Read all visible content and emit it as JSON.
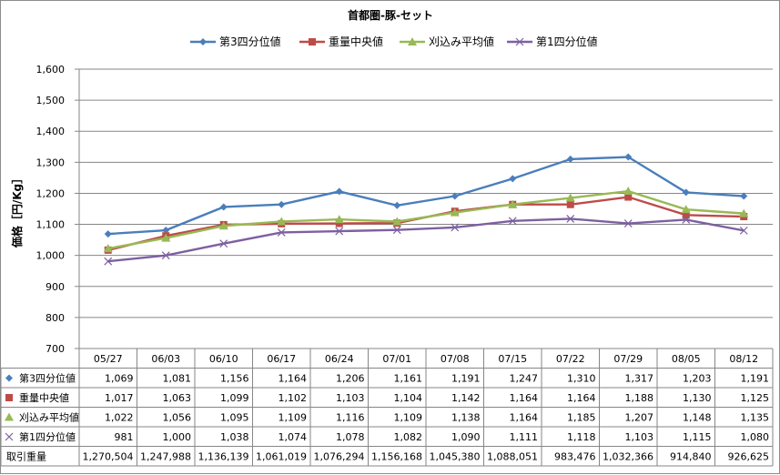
{
  "chart_data": {
    "type": "line",
    "title": "首都圏-豚-セット",
    "ylabel": "価格［円/Kg］",
    "ylim": [
      700,
      1600
    ],
    "yticks": [
      "700",
      "800",
      "900",
      "1,000",
      "1,100",
      "1,200",
      "1,300",
      "1,400",
      "1,500",
      "1,600"
    ],
    "categories": [
      "05/27",
      "06/03",
      "06/10",
      "06/17",
      "06/24",
      "07/01",
      "07/08",
      "07/15",
      "07/22",
      "07/29",
      "08/05",
      "08/12"
    ],
    "legend_position": "top",
    "grid": true,
    "series": [
      {
        "name": "第3四分位値",
        "color": "#4a7ebb",
        "marker": "diamond",
        "values": [
          1069,
          1081,
          1156,
          1164,
          1206,
          1161,
          1191,
          1247,
          1310,
          1317,
          1203,
          1191
        ],
        "labels": [
          "1,069",
          "1,081",
          "1,156",
          "1,164",
          "1,206",
          "1,161",
          "1,191",
          "1,247",
          "1,310",
          "1,317",
          "1,203",
          "1,191"
        ]
      },
      {
        "name": "重量中央値",
        "color": "#be4b48",
        "marker": "square",
        "values": [
          1017,
          1063,
          1099,
          1102,
          1103,
          1104,
          1142,
          1164,
          1164,
          1188,
          1130,
          1125
        ],
        "labels": [
          "1,017",
          "1,063",
          "1,099",
          "1,102",
          "1,103",
          "1,104",
          "1,142",
          "1,164",
          "1,164",
          "1,188",
          "1,130",
          "1,125"
        ]
      },
      {
        "name": "刈込み平均値",
        "color": "#98b954",
        "marker": "triangle",
        "values": [
          1022,
          1056,
          1095,
          1109,
          1116,
          1109,
          1138,
          1164,
          1185,
          1207,
          1148,
          1135
        ],
        "labels": [
          "1,022",
          "1,056",
          "1,095",
          "1,109",
          "1,116",
          "1,109",
          "1,138",
          "1,164",
          "1,185",
          "1,207",
          "1,148",
          "1,135"
        ]
      },
      {
        "name": "第1四分位値",
        "color": "#7d60a0",
        "marker": "x",
        "values": [
          981,
          1000,
          1038,
          1074,
          1078,
          1082,
          1090,
          1111,
          1118,
          1103,
          1115,
          1080
        ],
        "labels": [
          "981",
          "1,000",
          "1,038",
          "1,074",
          "1,078",
          "1,082",
          "1,090",
          "1,111",
          "1,118",
          "1,103",
          "1,115",
          "1,080"
        ]
      }
    ],
    "table_extra_rows": [
      {
        "name": "取引重量",
        "labels": [
          "1,270,504",
          "1,247,988",
          "1,136,139",
          "1,061,019",
          "1,076,294",
          "1,156,168",
          "1,045,380",
          "1,088,051",
          "983,476",
          "1,032,366",
          "914,840",
          "926,625"
        ]
      }
    ]
  }
}
